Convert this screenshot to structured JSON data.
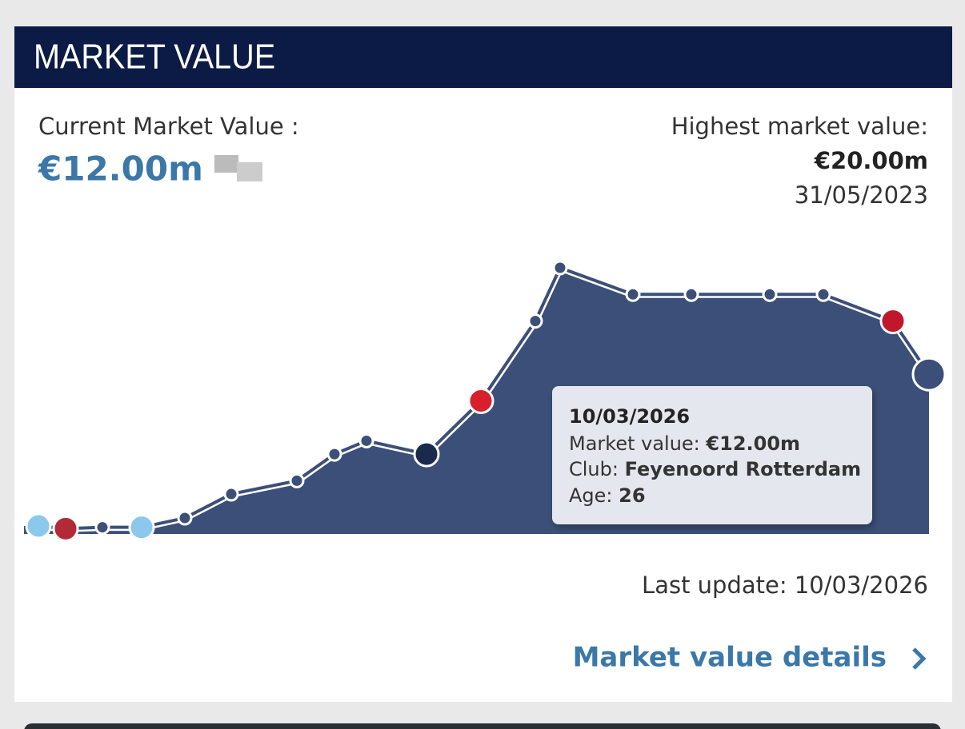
{
  "header": {
    "title": "MARKET VALUE"
  },
  "current": {
    "label": "Current Market Value :",
    "value": "€12.00m"
  },
  "highest": {
    "label": "Highest market value:",
    "value": "€20.00m",
    "date": "31/05/2023"
  },
  "chart_data": {
    "type": "area",
    "values": [
      0.6,
      0.4,
      0.5,
      0.5,
      1.2,
      3.0,
      4.0,
      6.0,
      7.0,
      6.0,
      10.0,
      16.0,
      20.0,
      18.0,
      18.0,
      18.0,
      18.0,
      16.0,
      12.0
    ],
    "color": "#3b4f78",
    "line_color": "#ffffff"
  },
  "tooltip": {
    "date": "10/03/2026",
    "market_value_label": "Market value:",
    "market_value": "€12.00m",
    "club_label": "Club:",
    "club": "Feyenoord Rotterdam",
    "age_label": "Age:",
    "age": "26"
  },
  "last_update": "Last update: 10/03/2026",
  "details_link": "Market value details"
}
